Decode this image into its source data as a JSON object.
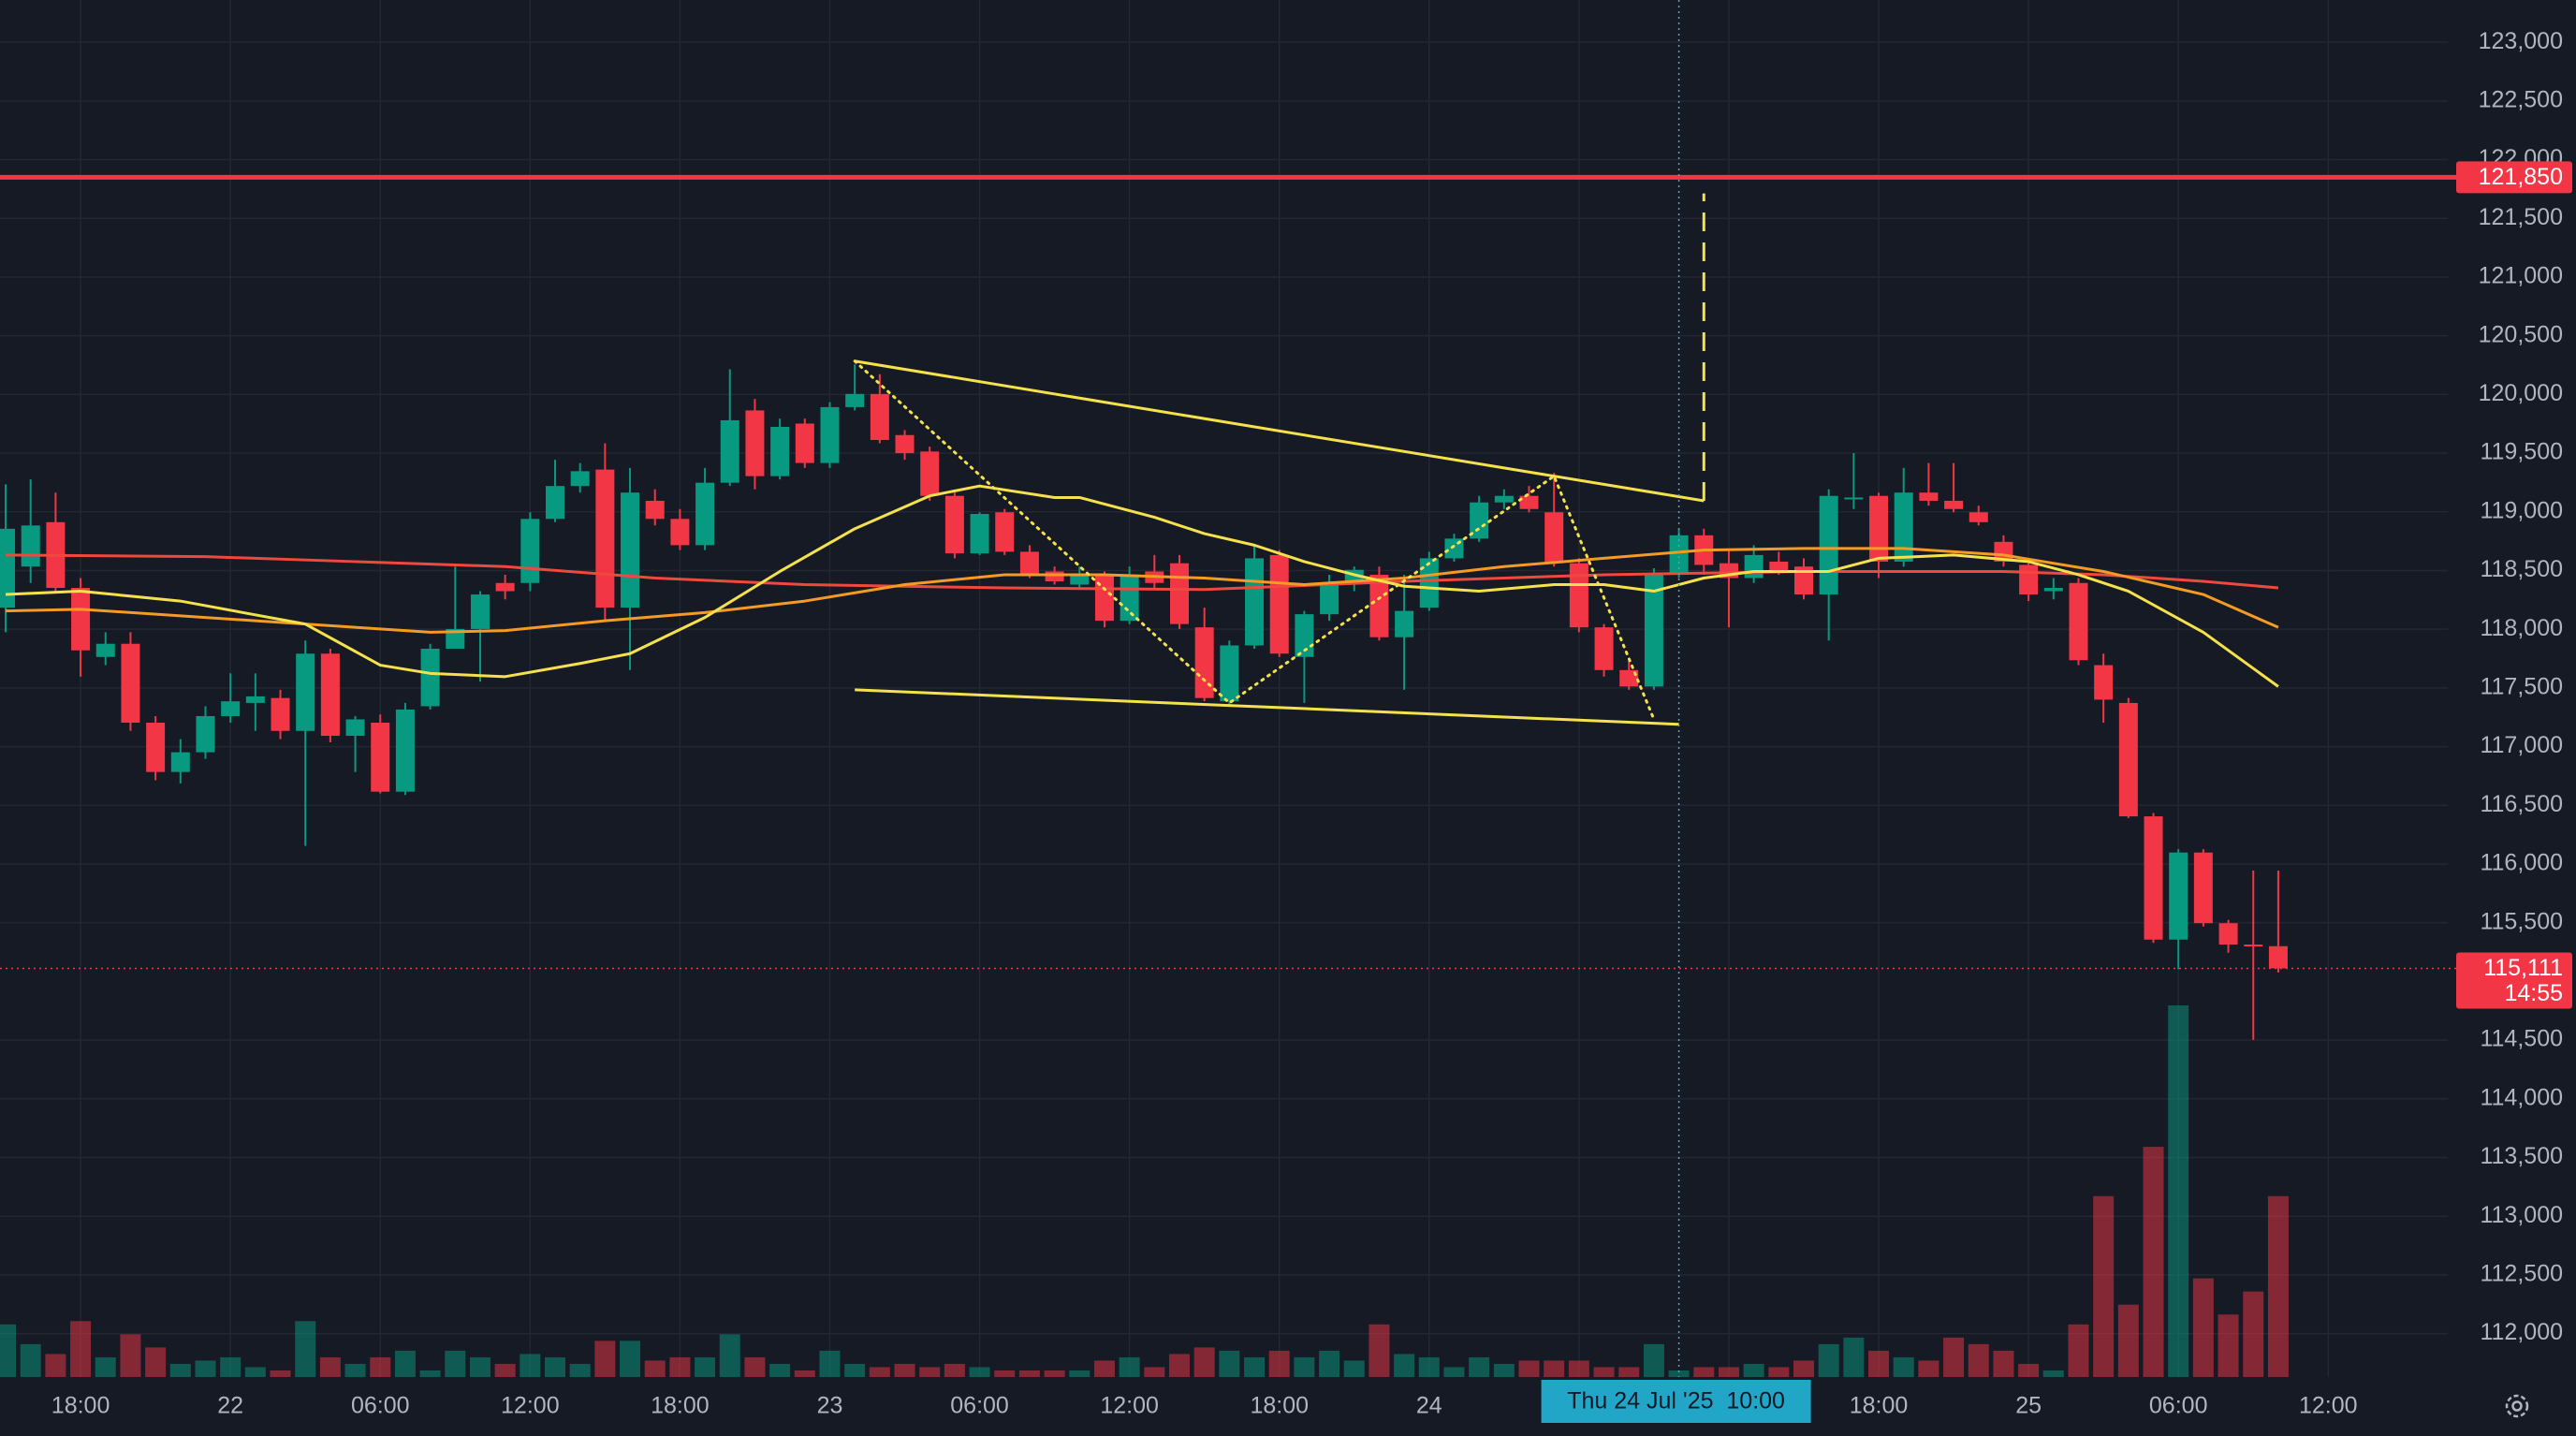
{
  "chart_data": {
    "type": "candlestick",
    "categories": [
      null,
      null,
      null,
      "18:00",
      null,
      null,
      null,
      null,
      null,
      "22",
      null,
      null,
      null,
      null,
      null,
      "06:00",
      null,
      null,
      null,
      null,
      null,
      "12:00",
      null,
      null,
      null,
      null,
      null,
      "18:00",
      null,
      null,
      null,
      null,
      null,
      "23",
      null,
      null,
      null,
      null,
      null,
      "06:00",
      null,
      null,
      null,
      null,
      null,
      "12:00",
      null,
      null,
      null,
      null,
      null,
      "18:00",
      null,
      null,
      null,
      null,
      null,
      "24",
      null,
      null,
      null,
      null,
      null,
      null,
      null,
      null,
      null,
      "Thu 24 Jul '25  10:00",
      null,
      null,
      null,
      null,
      null,
      null,
      null,
      "18:00",
      null,
      null,
      null,
      null,
      null,
      "25",
      null,
      null,
      null,
      null,
      null,
      "06:00",
      null,
      null,
      null,
      null,
      null,
      "12:00"
    ],
    "ohlc": [
      [
        118184,
        119234,
        117974,
        118856
      ],
      [
        118534,
        119276,
        118394,
        118884
      ],
      [
        118912,
        119164,
        118324,
        118352
      ],
      [
        118352,
        118436,
        117596,
        117820
      ],
      [
        117764,
        117974,
        117694,
        117876
      ],
      [
        117876,
        117974,
        117134,
        117204
      ],
      [
        117204,
        117260,
        116714,
        116784
      ],
      [
        116784,
        117064,
        116686,
        116952
      ],
      [
        116952,
        117344,
        116896,
        117260
      ],
      [
        117260,
        117624,
        117204,
        117386
      ],
      [
        117372,
        117624,
        117134,
        117428
      ],
      [
        117414,
        117484,
        117064,
        117134
      ],
      [
        117134,
        117904,
        116154,
        117792
      ],
      [
        117792,
        117834,
        117036,
        117092
      ],
      [
        117092,
        117260,
        116784,
        117232
      ],
      [
        117204,
        117274,
        116602,
        116616
      ],
      [
        116616,
        117372,
        116588,
        117316
      ],
      [
        117344,
        117876,
        117316,
        117834
      ],
      [
        117834,
        118534,
        117834,
        118002
      ],
      [
        118002,
        118324,
        117554,
        118296
      ],
      [
        118394,
        118464,
        118254,
        118324
      ],
      [
        118394,
        118996,
        118324,
        118940
      ],
      [
        118940,
        119444,
        118912,
        119220
      ],
      [
        119220,
        119416,
        119164,
        119346
      ],
      [
        119360,
        119584,
        118072,
        118184
      ],
      [
        118184,
        119374,
        117652,
        119164
      ],
      [
        119094,
        119192,
        118884,
        118940
      ],
      [
        118940,
        119024,
        118674,
        118716
      ],
      [
        118716,
        119374,
        118674,
        119248
      ],
      [
        119248,
        120214,
        119220,
        119780
      ],
      [
        119864,
        119962,
        119192,
        119304
      ],
      [
        119304,
        119794,
        119276,
        119724
      ],
      [
        119752,
        119794,
        119374,
        119416
      ],
      [
        119416,
        119934,
        119374,
        119892
      ],
      [
        119892,
        120256,
        119864,
        120004
      ],
      [
        120004,
        120172,
        119584,
        119612
      ],
      [
        119654,
        119696,
        119444,
        119500
      ],
      [
        119514,
        119556,
        119094,
        119136
      ],
      [
        119136,
        119164,
        118604,
        118646
      ],
      [
        118646,
        118996,
        118632,
        118982
      ],
      [
        118996,
        119024,
        118632,
        118660
      ],
      [
        118660,
        118716,
        118436,
        118464
      ],
      [
        118492,
        118534,
        118380,
        118408
      ],
      [
        118380,
        118534,
        118352,
        118464
      ],
      [
        118464,
        118492,
        118016,
        118072
      ],
      [
        118072,
        118534,
        118044,
        118464
      ],
      [
        118492,
        118632,
        118352,
        118394
      ],
      [
        118562,
        118632,
        118002,
        118044
      ],
      [
        118016,
        118184,
        117386,
        117414
      ],
      [
        117386,
        117904,
        117344,
        117862
      ],
      [
        117862,
        118716,
        117834,
        118604
      ],
      [
        118632,
        118674,
        117764,
        117792
      ],
      [
        117764,
        118156,
        117372,
        118128
      ],
      [
        118128,
        118464,
        118072,
        118394
      ],
      [
        118394,
        118534,
        118324,
        118506
      ],
      [
        118464,
        118534,
        117904,
        117932
      ],
      [
        117932,
        118464,
        117484,
        118156
      ],
      [
        118184,
        118660,
        118156,
        118604
      ],
      [
        118604,
        118814,
        118576,
        118772
      ],
      [
        118772,
        119136,
        118744,
        119080
      ],
      [
        119080,
        119192,
        119024,
        119136
      ],
      [
        119136,
        119220,
        118996,
        119024
      ],
      [
        118996,
        119332,
        118534,
        118562
      ],
      [
        118562,
        118604,
        117974,
        118016
      ],
      [
        118016,
        118044,
        117596,
        117652
      ],
      [
        117652,
        117736,
        117484,
        117512
      ],
      [
        117512,
        118520,
        117484,
        118464
      ],
      [
        118464,
        118856,
        118436,
        118800
      ],
      [
        118800,
        118856,
        118464,
        118548
      ],
      [
        118562,
        118674,
        118016,
        118436
      ],
      [
        118436,
        118716,
        118394,
        118632
      ],
      [
        118576,
        118660,
        118464,
        118492
      ],
      [
        118534,
        118604,
        118254,
        118296
      ],
      [
        118296,
        119192,
        117904,
        119136
      ],
      [
        119108,
        119500,
        119024,
        119122
      ],
      [
        119136,
        119164,
        118436,
        118576
      ],
      [
        118576,
        119374,
        118534,
        119164
      ],
      [
        119164,
        119416,
        119052,
        119094
      ],
      [
        119094,
        119416,
        118996,
        119024
      ],
      [
        118996,
        119052,
        118884,
        118912
      ],
      [
        118744,
        118800,
        118534,
        118576
      ],
      [
        118548,
        118604,
        118240,
        118296
      ],
      [
        118324,
        118436,
        118254,
        118352
      ],
      [
        118394,
        118436,
        117694,
        117736
      ],
      [
        117694,
        117792,
        117204,
        117400
      ],
      [
        117372,
        117414,
        116392,
        116406
      ],
      [
        116406,
        116434,
        115328,
        115356
      ],
      [
        115356,
        116126,
        115104,
        116098
      ],
      [
        116098,
        116126,
        115468,
        115496
      ],
      [
        115496,
        115524,
        115244,
        115314
      ],
      [
        115314,
        115944,
        114502,
        115300
      ],
      [
        115300,
        115944,
        115076,
        115111
      ],
      null,
      null
    ],
    "volume": [
      32,
      20,
      14,
      34,
      12,
      26,
      18,
      8,
      10,
      12,
      6,
      4,
      34,
      12,
      8,
      12,
      16,
      4,
      16,
      12,
      8,
      14,
      12,
      8,
      22,
      22,
      10,
      12,
      12,
      26,
      12,
      8,
      4,
      16,
      8,
      6,
      8,
      6,
      8,
      6,
      4,
      4,
      4,
      4,
      10,
      12,
      6,
      14,
      18,
      16,
      12,
      16,
      12,
      16,
      10,
      32,
      14,
      12,
      6,
      12,
      8,
      10,
      10,
      10,
      6,
      6,
      20,
      4,
      6,
      6,
      8,
      6,
      10,
      20,
      24,
      16,
      12,
      10,
      24,
      20,
      16,
      8,
      4,
      32,
      110,
      44,
      140,
      226,
      60,
      38,
      52,
      110,
      null,
      null
    ],
    "up_color": "#089981",
    "down_color": "#f23645",
    "ylim": [
      111630,
      123360
    ],
    "yticks": [
      {
        "value": 112000,
        "label": "112,000"
      },
      {
        "value": 112500,
        "label": "112,500"
      },
      {
        "value": 113000,
        "label": "113,000"
      },
      {
        "value": 113500,
        "label": "113,500"
      },
      {
        "value": 114000,
        "label": "114,000"
      },
      {
        "value": 114500,
        "label": "114,500"
      },
      {
        "value": 115500,
        "label": "115,500"
      },
      {
        "value": 116000,
        "label": "116,000"
      },
      {
        "value": 116500,
        "label": "116,500"
      },
      {
        "value": 117000,
        "label": "117,000"
      },
      {
        "value": 117500,
        "label": "117,500"
      },
      {
        "value": 118000,
        "label": "118,000"
      },
      {
        "value": 118500,
        "label": "118,500"
      },
      {
        "value": 119000,
        "label": "119,000"
      },
      {
        "value": 119500,
        "label": "119,500"
      },
      {
        "value": 120000,
        "label": "120,000"
      },
      {
        "value": 120500,
        "label": "120,500"
      },
      {
        "value": 121000,
        "label": "121,000"
      },
      {
        "value": 121500,
        "label": "121,500"
      },
      {
        "value": 122000,
        "label": "122,000"
      },
      {
        "value": 122500,
        "label": "122,500"
      },
      {
        "value": 123000,
        "label": "123,000"
      }
    ],
    "grid": true,
    "moving_averages": [
      {
        "color": "#f0483c",
        "x": [
          0,
          8,
          14,
          20,
          26,
          32,
          40,
          48,
          56,
          64,
          72,
          80,
          84,
          88,
          91
        ],
        "values": [
          118632,
          118618,
          118576,
          118534,
          118436,
          118380,
          118352,
          118338,
          118408,
          118464,
          118492,
          118492,
          118464,
          118408,
          118352
        ]
      },
      {
        "color": "#f59a23",
        "x": [
          0,
          3,
          10,
          14,
          17,
          20,
          24,
          28,
          32,
          36,
          40,
          44,
          48,
          52,
          56,
          60,
          64,
          68,
          72,
          76,
          80,
          84,
          88,
          91
        ],
        "values": [
          118156,
          118170,
          118072,
          118016,
          117974,
          117988,
          118072,
          118142,
          118240,
          118380,
          118464,
          118464,
          118436,
          118380,
          118436,
          118534,
          118604,
          118674,
          118688,
          118688,
          118632,
          118492,
          118296,
          118016
        ]
      },
      {
        "color": "#f5e14b",
        "x": [
          0,
          3,
          7,
          12,
          15,
          17,
          20,
          23,
          25,
          28,
          31,
          34,
          37,
          39,
          42,
          43,
          46,
          48,
          50,
          52,
          54,
          56,
          59,
          62,
          64,
          66,
          68,
          70,
          73,
          75,
          78,
          81,
          83,
          85,
          88,
          91
        ],
        "values": [
          118296,
          118324,
          118240,
          118044,
          117694,
          117624,
          117596,
          117708,
          117792,
          118100,
          118492,
          118856,
          119136,
          119220,
          119122,
          119122,
          118954,
          118814,
          118716,
          118576,
          118464,
          118366,
          118324,
          118380,
          118380,
          118324,
          118436,
          118492,
          118492,
          118604,
          118632,
          118576,
          118464,
          118324,
          117974,
          117512
        ]
      }
    ],
    "trendlines": [
      {
        "color": "#f5e14b",
        "style": "solid",
        "x": [
          34,
          68
        ],
        "values": [
          120284,
          119094
        ]
      },
      {
        "color": "#f5e14b",
        "style": "solid",
        "x": [
          34,
          67
        ],
        "values": [
          117484,
          117190
        ]
      },
      {
        "color": "#f5e14b",
        "style": "dotted",
        "x": [
          34,
          49,
          62,
          66
        ],
        "values": [
          120284,
          117372,
          119304,
          117232
        ]
      },
      {
        "color": "#f5e14b",
        "style": "dashed",
        "x": [
          68,
          68
        ],
        "values": [
          119094,
          121712
        ]
      }
    ],
    "levels": [
      {
        "value": 121850,
        "label": "121,850",
        "color": "#f23645"
      }
    ],
    "last_price": {
      "value": 115111,
      "label": "115,111",
      "countdown": "14:55",
      "color": "#f23645"
    }
  }
}
